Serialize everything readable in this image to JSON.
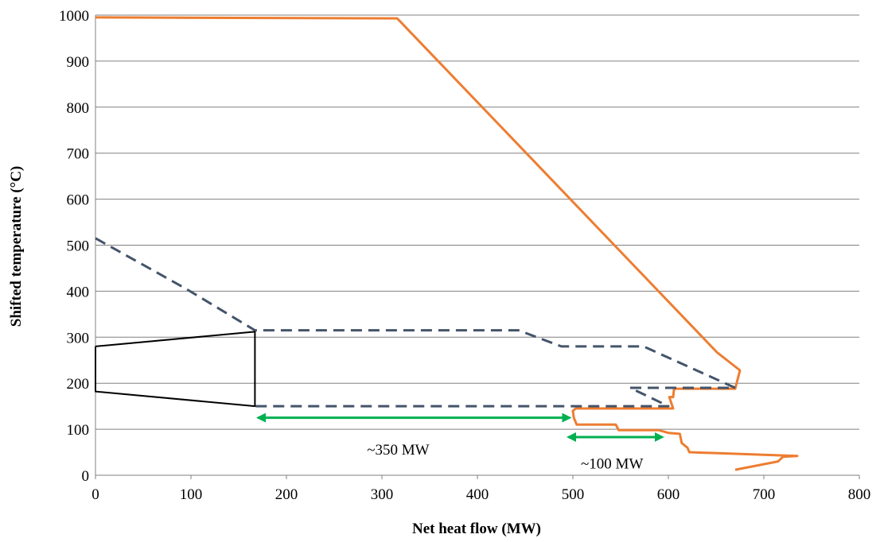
{
  "chart_data": {
    "type": "line",
    "xlabel": "Net heat flow (MW)",
    "ylabel": "Shifted temperature (°C)",
    "xlim": [
      0,
      800
    ],
    "ylim": [
      0,
      1000
    ],
    "xticks": [
      "0",
      "100",
      "200",
      "300",
      "400",
      "500",
      "600",
      "700",
      "800"
    ],
    "yticks": [
      "0",
      "100",
      "200",
      "300",
      "400",
      "500",
      "600",
      "700",
      "800",
      "900",
      "1000"
    ],
    "grid": "horizontal",
    "legend": "none",
    "series": [
      {
        "style": "solid",
        "color": "#ED7D31",
        "points": [
          [
            0,
            995
          ],
          [
            316,
            993
          ],
          [
            651,
            267
          ],
          [
            675,
            228
          ],
          [
            670,
            188
          ],
          [
            606,
            188
          ],
          [
            605,
            170
          ],
          [
            601,
            170
          ],
          [
            605,
            145
          ],
          [
            503,
            145
          ],
          [
            500,
            140
          ],
          [
            501,
            125
          ],
          [
            504,
            110
          ],
          [
            545,
            110
          ],
          [
            548,
            98
          ],
          [
            590,
            98
          ],
          [
            600,
            92
          ],
          [
            612,
            90
          ],
          [
            614,
            70
          ],
          [
            620,
            60
          ],
          [
            622,
            50
          ],
          [
            735,
            42
          ],
          [
            720,
            40
          ],
          [
            715,
            30
          ],
          [
            670,
            12
          ]
        ]
      },
      {
        "style": "dashed",
        "color": "#44546A",
        "points": [
          [
            0,
            515
          ],
          [
            95,
            405
          ],
          [
            167,
            315
          ],
          [
            443,
            315
          ],
          [
            488,
            280
          ],
          [
            574,
            280
          ],
          [
            670,
            190
          ],
          [
            560,
            190
          ],
          [
            600,
            150
          ],
          [
            167,
            150
          ]
        ]
      },
      {
        "style": "solid",
        "color": "#000000",
        "points": [
          [
            0,
            280
          ],
          [
            167,
            312
          ],
          [
            167,
            150
          ],
          [
            0,
            182
          ],
          [
            0,
            280
          ]
        ]
      }
    ],
    "annotations": [
      {
        "text": "~350 MW",
        "x_from": 167,
        "x_to": 500,
        "y": 125,
        "text_x": 317,
        "text_y": 55,
        "color": "#00B050"
      },
      {
        "text": "~100 MW",
        "x_from": 492,
        "x_to": 597,
        "y": 83,
        "text_x": 541,
        "text_y": 25,
        "color": "#00B050"
      }
    ]
  }
}
